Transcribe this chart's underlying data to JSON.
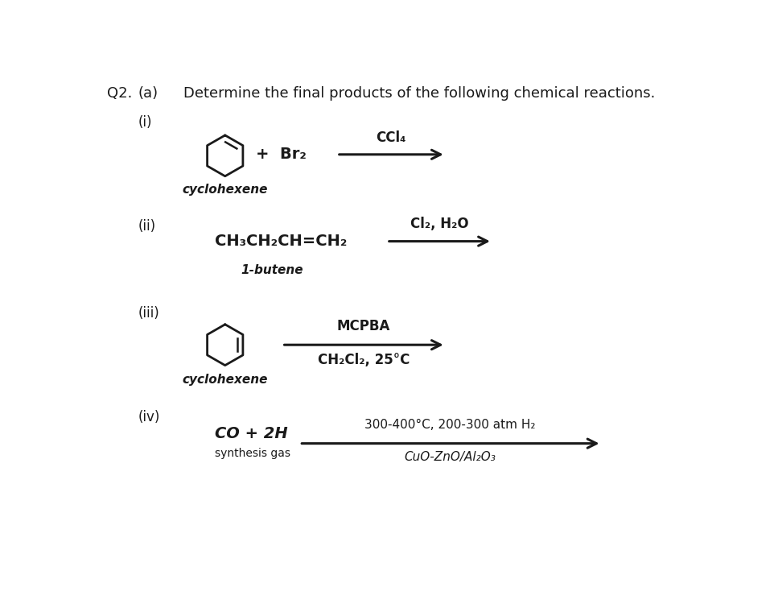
{
  "background_color": "#ffffff",
  "text_color": "#1a1a1a",
  "q_label": "Q2.",
  "a_label": "(a)",
  "main_text": "Determine the final products of the following chemical reactions.",
  "roman_i": "(i)",
  "roman_ii": "(ii)",
  "roman_iii": "(iii)",
  "roman_iv": "(iv)",
  "reaction_i_plus": "+  Br₂",
  "reaction_i_condition": "CCl₄",
  "reaction_i_label": "cyclohexene",
  "reaction_ii_reactant": "CH₃CH₂CH=CH₂",
  "reaction_ii_condition_top": "Cl₂, H₂O",
  "reaction_ii_label": "1-butene",
  "reaction_iii_condition_top": "MCPBA",
  "reaction_iii_condition_bot": "CH₂Cl₂, 25°C",
  "reaction_iii_label": "cyclohexene",
  "reaction_iv_reactant_top": "CO + 2H",
  "reaction_iv_reactant_bot": "synthesis gas",
  "reaction_iv_condition_top": "300-400°C, 200-300 atm H₂",
  "reaction_iv_condition_bot": "CuO-ZnO/Al₂O₃",
  "fs_header": 13,
  "fs_roman": 12,
  "fs_formula": 13,
  "fs_condition": 11,
  "fs_label": 11
}
